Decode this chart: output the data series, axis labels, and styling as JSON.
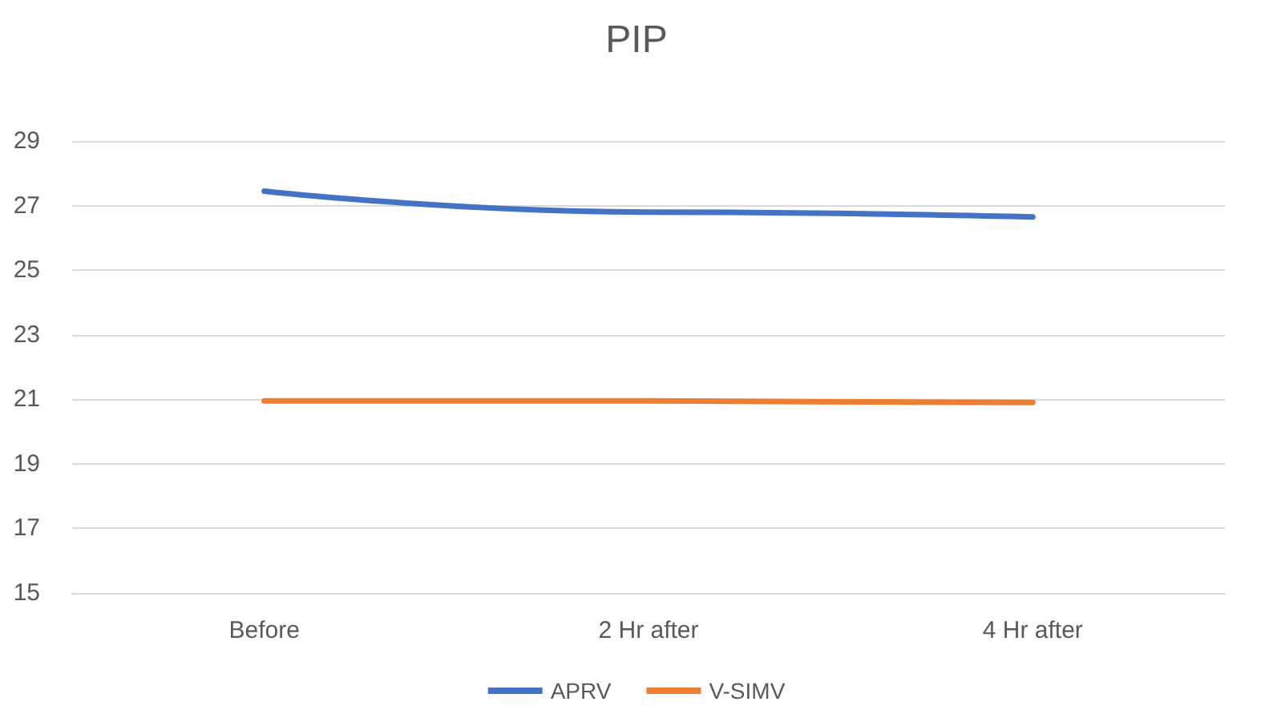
{
  "chart_data": {
    "type": "line",
    "title": "PIP",
    "categories": [
      "Before",
      "2 Hr after",
      "4 Hr after"
    ],
    "series": [
      {
        "name": "APRV",
        "color": "#4472c4",
        "values": [
          27.45,
          26.8,
          26.65
        ]
      },
      {
        "name": "V-SIMV",
        "color": "#ed7d31",
        "values": [
          20.95,
          20.95,
          20.9
        ]
      }
    ],
    "ylim": [
      15,
      29
    ],
    "yticks": [
      15,
      17,
      19,
      21,
      23,
      25,
      27,
      29
    ],
    "grid": "y",
    "legend": "bottom",
    "marker": "none",
    "line_style": "solid"
  }
}
